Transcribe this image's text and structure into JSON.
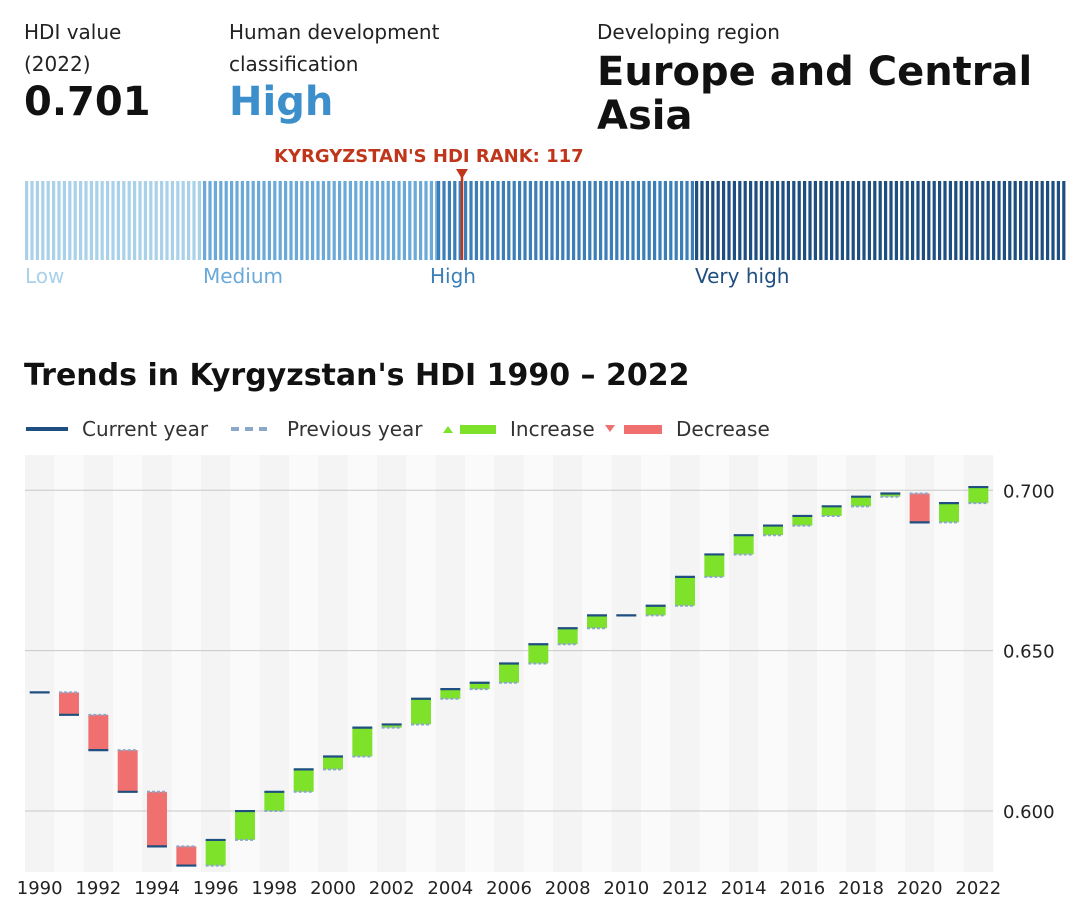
{
  "header": {
    "hdi_label_line1": "HDI value",
    "hdi_label_line2": "(2022)",
    "hdi_value": "0.701",
    "classification_label_line1": "Human development",
    "classification_label_line2": "classification",
    "classification_value": "High",
    "region_label": "Developing region",
    "region_value_line1": "Europe and Central",
    "region_value_line2": "Asia"
  },
  "rank_scale": {
    "rank_label": "KYRGYZSTAN'S HDI RANK: 117",
    "rank": 117,
    "total_countries": 193,
    "bands": [
      {
        "label": "Low",
        "color": "#a9d1ea",
        "stripe": "#a9d1ea",
        "text_color": "#a9d1ea"
      },
      {
        "label": "Medium",
        "color": "#6aa9d8",
        "stripe": "#6aa9d8",
        "text_color": "#6aa9d8"
      },
      {
        "label": "High",
        "color": "#3c7fb8",
        "stripe": "#3c7fb8",
        "text_color": "#3c7fb8"
      },
      {
        "label": "Very high",
        "color": "#1e4f80",
        "stripe": "#1e4f80",
        "text_color": "#1e4f80"
      }
    ],
    "marker_color": "#c0361b"
  },
  "chart": {
    "title": "Trends in Kyrgyzstan's HDI 1990 – 2022",
    "legend": {
      "current": "Current year",
      "previous": "Previous year",
      "increase": "Increase",
      "decrease": "Decrease"
    },
    "colors": {
      "current": "#1e4f80",
      "previous": "#8aa8c8",
      "increase": "#7ee22a",
      "decrease": "#f07070"
    }
  },
  "chart_data": {
    "type": "bar",
    "title": "Trends in Kyrgyzstan's HDI 1990 – 2022",
    "x": [
      1990,
      1991,
      1992,
      1993,
      1994,
      1995,
      1996,
      1997,
      1998,
      1999,
      2000,
      2001,
      2002,
      2003,
      2004,
      2005,
      2006,
      2007,
      2008,
      2009,
      2010,
      2011,
      2012,
      2013,
      2014,
      2015,
      2016,
      2017,
      2018,
      2019,
      2020,
      2021,
      2022
    ],
    "values": [
      0.637,
      0.63,
      0.619,
      0.606,
      0.589,
      0.583,
      0.591,
      0.6,
      0.606,
      0.613,
      0.617,
      0.626,
      0.627,
      0.635,
      0.638,
      0.64,
      0.646,
      0.652,
      0.657,
      0.661,
      0.661,
      0.664,
      0.673,
      0.68,
      0.686,
      0.689,
      0.692,
      0.695,
      0.698,
      0.699,
      0.69,
      0.696,
      0.701
    ],
    "x_tick_labels": [
      "1990",
      "1992",
      "1994",
      "1996",
      "1998",
      "2000",
      "2002",
      "2004",
      "2006",
      "2008",
      "2010",
      "2012",
      "2014",
      "2016",
      "2018",
      "2020",
      "2022"
    ],
    "y_ticks": [
      0.6,
      0.65,
      0.7
    ],
    "y_tick_labels": [
      "0.600",
      "0.650",
      "0.700"
    ],
    "ylim": [
      0.581,
      0.711
    ],
    "grid": true,
    "legend_placement": "top-left"
  }
}
